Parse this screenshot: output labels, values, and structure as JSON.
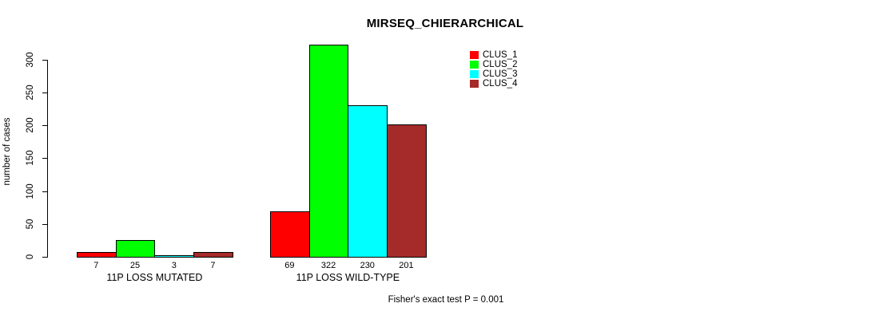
{
  "chart_data": {
    "type": "bar",
    "title": "MIRSEQ_CHIERARCHICAL",
    "ylabel": "number of cases",
    "xlabel": "",
    "categories": [
      "11P LOSS MUTATED",
      "11P LOSS WILD-TYPE"
    ],
    "series": [
      {
        "name": "CLUS_1",
        "color": "#FF0000",
        "values": [
          7,
          69
        ]
      },
      {
        "name": "CLUS_2",
        "color": "#00FF00",
        "values": [
          25,
          322
        ]
      },
      {
        "name": "CLUS_3",
        "color": "#00FFFF",
        "values": [
          3,
          230
        ]
      },
      {
        "name": "CLUS_4",
        "color": "#A52A2A",
        "values": [
          7,
          201
        ]
      }
    ],
    "bar_value_labels": [
      [
        "7",
        "25",
        "3",
        "7"
      ],
      [
        "69",
        "322",
        "230",
        "201"
      ]
    ],
    "yticks": [
      0,
      50,
      100,
      150,
      200,
      250,
      300
    ],
    "ylim": [
      0,
      322
    ],
    "grid": false,
    "legend_position": "top-right",
    "legend_box": false,
    "annotation": "Fisher's exact test P = 0.001",
    "bar_border_color": "#000000",
    "background_color": "#FFFFFF"
  }
}
